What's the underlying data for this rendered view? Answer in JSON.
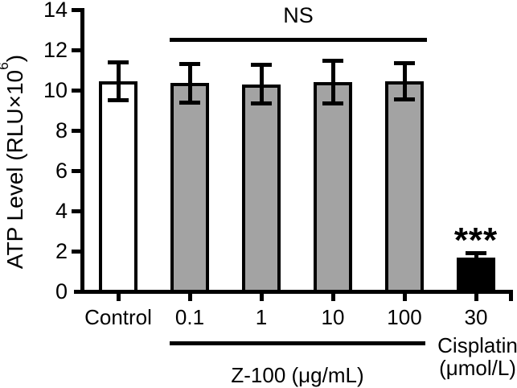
{
  "figure": {
    "background": "#ffffff",
    "ink_color": "#000000",
    "bar_fills": {
      "control": "#ffffff",
      "z100": "#a3a3a3",
      "cisplatin": "#000000"
    }
  },
  "chart_data": {
    "type": "bar",
    "title": "",
    "ylabel": "ATP Level (RLU×10⁶)",
    "ylabel_base": "ATP Level (RLU×10",
    "ylabel_sup": "6",
    "ylabel_close": ")",
    "ylim": [
      0,
      14
    ],
    "yticks": [
      0,
      2,
      4,
      6,
      8,
      10,
      12,
      14
    ],
    "grid": false,
    "legend": null,
    "categories": [
      "Control",
      "0.1",
      "1",
      "10",
      "100",
      "30"
    ],
    "values": [
      10.45,
      10.35,
      10.3,
      10.4,
      10.45,
      1.7
    ],
    "errors": [
      1.05,
      1.05,
      1.05,
      1.15,
      1.0,
      0.3
    ],
    "bar_styles": [
      "control",
      "z100",
      "z100",
      "z100",
      "z100",
      "cisplatin"
    ],
    "annotations": {
      "ns_label": "NS",
      "ns_span": [
        1,
        4
      ],
      "sig_label": "***",
      "sig_bar_index": 5
    },
    "group_labels": {
      "z100": {
        "text": "Z-100 (μg/mL)",
        "span": [
          1,
          4
        ]
      },
      "cisplatin": {
        "lines": [
          "Cisplatin",
          "(μmol/L)"
        ],
        "bar_index": 5
      }
    }
  }
}
